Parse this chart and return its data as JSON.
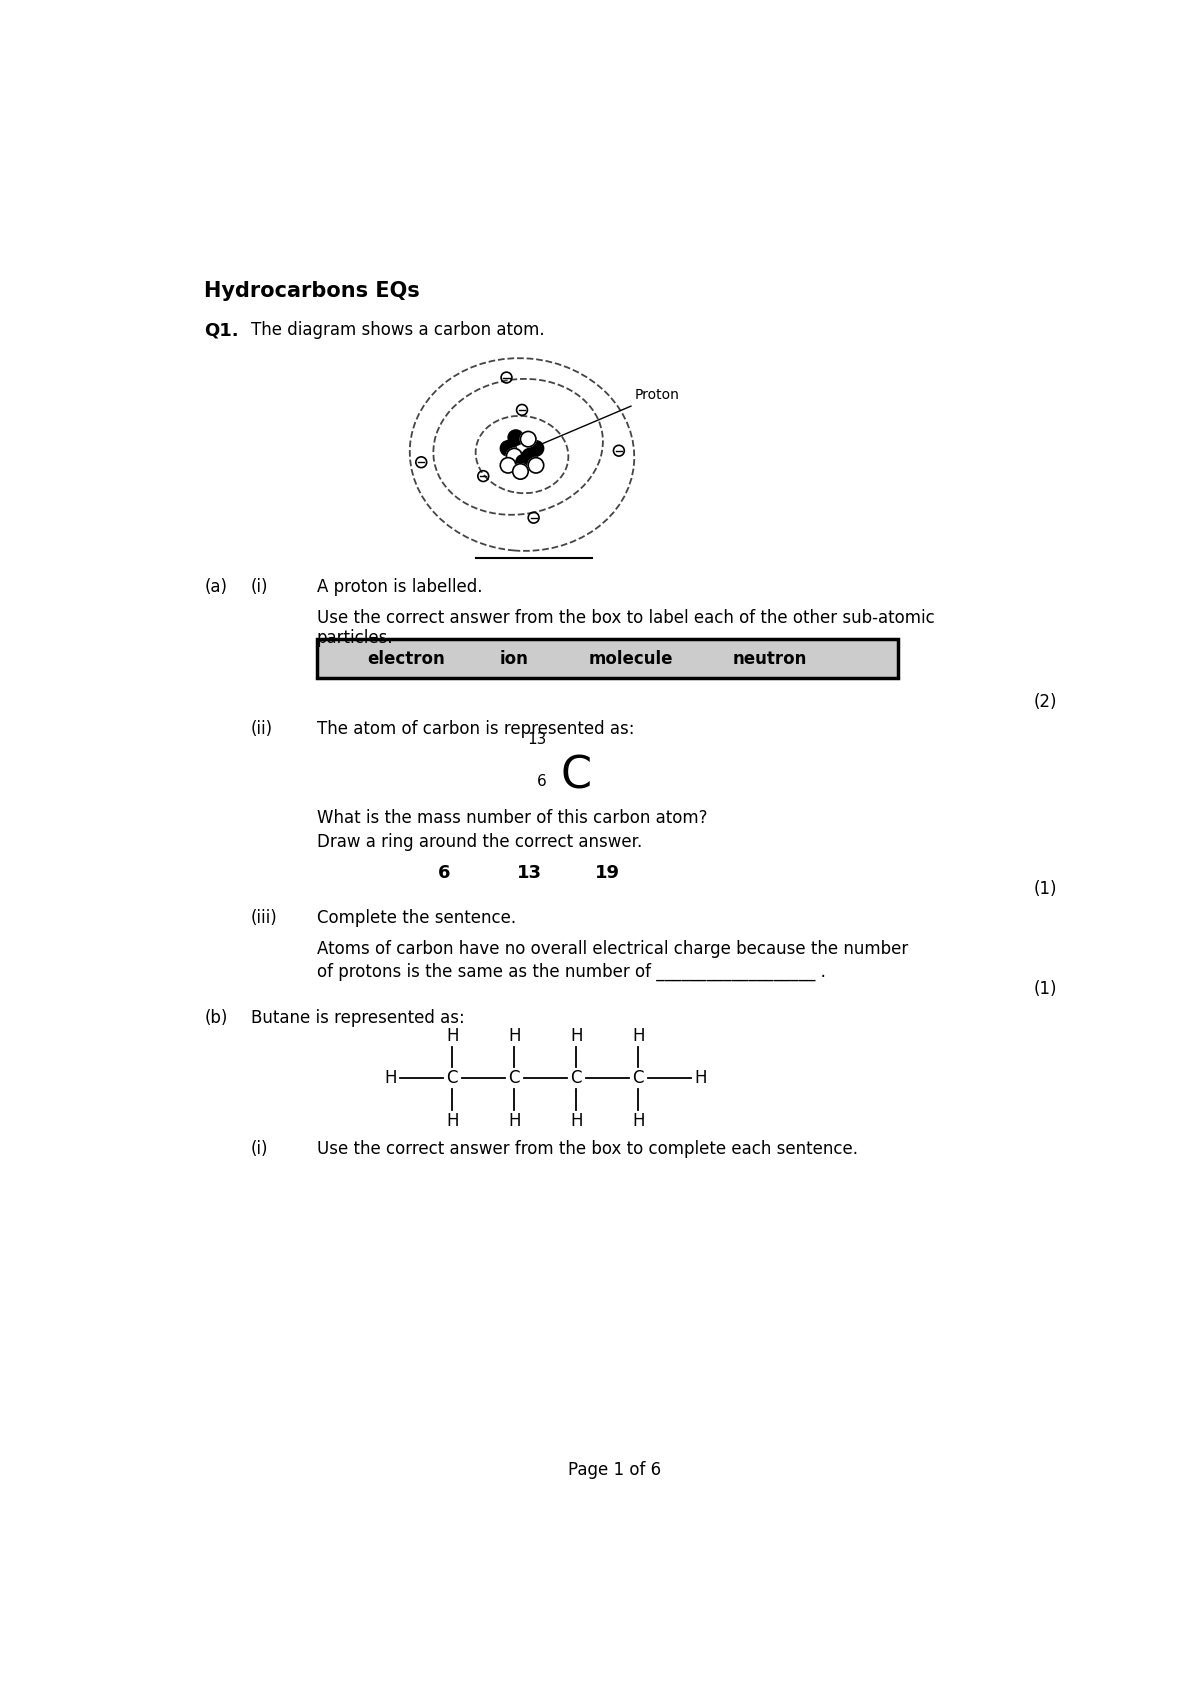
{
  "title": "Hydrocarbons EQs",
  "bg_color": "#ffffff",
  "text_color": "#000000",
  "q1_label": "Q1.",
  "q1_text": "The diagram shows a carbon atom.",
  "a_label": "(a)",
  "a_i_label": "(i)",
  "a_i_text1": "A proton is labelled.",
  "a_i_text2": "Use the correct answer from the box to label each of the other sub-atomic",
  "a_i_text3": "particles.",
  "box_words": [
    "electron",
    "ion",
    "molecule",
    "neutron"
  ],
  "marks_2": "(2)",
  "a_ii_label": "(ii)",
  "a_ii_text": "The atom of carbon is represented as:",
  "carbon_symbol": "C",
  "carbon_super": "13",
  "carbon_sub": "6",
  "mass_q": "What is the mass number of this carbon atom?",
  "ring_q": "Draw a ring around the correct answer.",
  "ring_choices": [
    "6",
    "13",
    "19"
  ],
  "marks_1a": "(1)",
  "a_iii_label": "(iii)",
  "a_iii_text0": "Complete the sentence.",
  "a_iii_text1": "Atoms of carbon have no overall electrical charge because the number",
  "a_iii_text2": "of protons is the same as the number of ___________________ .",
  "marks_1b": "(1)",
  "b_label": "(b)",
  "b_text": "Butane is represented as:",
  "b_i_label": "(i)",
  "b_i_text": "Use the correct answer from the box to complete each sentence.",
  "page_footer": "Page 1 of 6",
  "proton_label": "Proton"
}
